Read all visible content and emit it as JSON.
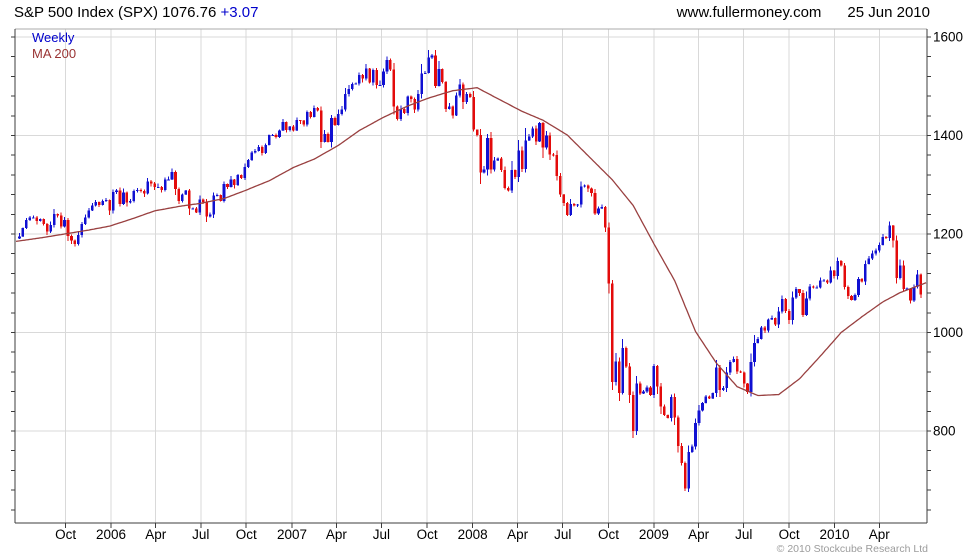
{
  "header": {
    "title": "S&P 500 Index (SPX) 1076.76 ",
    "change": "+3.07",
    "site": "www.fullermoney.com",
    "date": "25 Jun 2010"
  },
  "legend": {
    "series_label": "Weekly",
    "ma_label": "MA 200"
  },
  "footer": {
    "copyright": "© 2010 Stockcube Research Ltd"
  },
  "colors": {
    "up_candle": "#1010d2",
    "down_candle": "#e30b0b",
    "ma_line": "#994040",
    "grid": "#d9d9d9",
    "border_dark": "#3c3c3c",
    "border_light": "#ababab",
    "change_text": "#0000cc",
    "legend_weekly_text": "#0000cc",
    "legend_ma_text": "#993333",
    "axis_text": "#000000",
    "copyright_text": "#9c9c9c"
  },
  "chart_data": {
    "type": "candlestick",
    "title": "S&P 500 Index (SPX)",
    "last_price": 1076.76,
    "last_change": 3.07,
    "timeframe": "Weekly",
    "overlay": "MA 200",
    "grid": true,
    "legend_position": "top-left",
    "ylim": [
      613,
      1616
    ],
    "y_ticks": [
      800,
      1000,
      1200,
      1400,
      1600
    ],
    "y_minor_tick_step": 40,
    "x_ticks": [
      {
        "label": "Oct",
        "week": 14.3
      },
      {
        "label": "2006",
        "week": 27.4
      },
      {
        "label": "Apr",
        "week": 40.3
      },
      {
        "label": "Jul",
        "week": 53.3
      },
      {
        "label": "Oct",
        "week": 66.4
      },
      {
        "label": "2007",
        "week": 79.6
      },
      {
        "label": "Apr",
        "week": 92.4
      },
      {
        "label": "Jul",
        "week": 105.4
      },
      {
        "label": "Oct",
        "week": 118.6
      },
      {
        "label": "2008",
        "week": 131.7
      },
      {
        "label": "Apr",
        "week": 144.7
      },
      {
        "label": "Jul",
        "week": 157.7
      },
      {
        "label": "Oct",
        "week": 170.9
      },
      {
        "label": "2009",
        "week": 184.0
      },
      {
        "label": "Apr",
        "week": 196.9
      },
      {
        "label": "Jul",
        "week": 209.9
      },
      {
        "label": "Oct",
        "week": 223.0
      },
      {
        "label": "2010",
        "week": 236.1
      },
      {
        "label": "Apr",
        "week": 249.0
      }
    ],
    "weekly_closes": [
      1191,
      1195,
      1212,
      1228,
      1233,
      1234,
      1226,
      1230,
      1220,
      1205,
      1218,
      1241,
      1238,
      1215,
      1228,
      1196,
      1187,
      1180,
      1198,
      1220,
      1234,
      1248,
      1258,
      1265,
      1259,
      1267,
      1269,
      1248,
      1285,
      1288,
      1261,
      1284,
      1264,
      1267,
      1287,
      1289,
      1287,
      1282,
      1307,
      1303,
      1295,
      1295,
      1289,
      1311,
      1311,
      1326,
      1291,
      1267,
      1280,
      1288,
      1252,
      1252,
      1244,
      1270,
      1265,
      1236,
      1240,
      1278,
      1279,
      1267,
      1302,
      1295,
      1311,
      1299,
      1320,
      1314,
      1336,
      1350,
      1365,
      1369,
      1377,
      1364,
      1381,
      1401,
      1401,
      1397,
      1410,
      1427,
      1411,
      1418,
      1410,
      1431,
      1430,
      1422,
      1448,
      1438,
      1456,
      1451,
      1387,
      1403,
      1387,
      1436,
      1421,
      1444,
      1453,
      1484,
      1494,
      1505,
      1506,
      1523,
      1516,
      1536,
      1508,
      1533,
      1503,
      1503,
      1530,
      1553,
      1534,
      1459,
      1433,
      1454,
      1446,
      1479,
      1474,
      1453,
      1484,
      1526,
      1527,
      1558,
      1562,
      1501,
      1535,
      1509,
      1454,
      1459,
      1441,
      1481,
      1504,
      1468,
      1484,
      1478,
      1412,
      1401,
      1325,
      1331,
      1395,
      1331,
      1349,
      1353,
      1330,
      1293,
      1288,
      1330,
      1316,
      1370,
      1332,
      1390,
      1398,
      1414,
      1388,
      1425,
      1376,
      1400,
      1361,
      1360,
      1318,
      1280,
      1263,
      1239,
      1261,
      1258,
      1260,
      1296,
      1298,
      1292,
      1283,
      1242,
      1252,
      1255,
      1213,
      1099,
      899,
      941,
      877,
      969,
      931,
      873,
      800,
      896,
      876,
      880,
      888,
      873,
      932,
      890,
      850,
      832,
      826,
      869,
      827,
      770,
      735,
      683,
      757,
      769,
      816,
      842,
      857,
      870,
      866,
      877,
      929,
      883,
      887,
      919,
      940,
      946,
      921,
      919,
      896,
      879,
      940,
      979,
      987,
      1010,
      1004,
      1026,
      1029,
      1016,
      1043,
      1068,
      1044,
      1025,
      1071,
      1088,
      1080,
      1036,
      1069,
      1093,
      1091,
      1091,
      1106,
      1106,
      1102,
      1126,
      1115,
      1145,
      1136,
      1092,
      1074,
      1066,
      1076,
      1109,
      1104,
      1139,
      1150,
      1160,
      1166,
      1178,
      1194,
      1192,
      1217,
      1187,
      1111,
      1136,
      1088,
      1089,
      1065,
      1092,
      1118,
      1077
    ],
    "ma200_points": [
      [
        0,
        1185
      ],
      [
        7,
        1192
      ],
      [
        14,
        1200
      ],
      [
        21,
        1208
      ],
      [
        27,
        1216
      ],
      [
        34,
        1232
      ],
      [
        40,
        1247
      ],
      [
        47,
        1256
      ],
      [
        53,
        1262
      ],
      [
        60,
        1272
      ],
      [
        66,
        1288
      ],
      [
        73,
        1308
      ],
      [
        80,
        1335
      ],
      [
        86,
        1352
      ],
      [
        93,
        1380
      ],
      [
        99,
        1410
      ],
      [
        106,
        1437
      ],
      [
        113,
        1460
      ],
      [
        119,
        1476
      ],
      [
        126,
        1491
      ],
      [
        133,
        1497
      ],
      [
        140,
        1471
      ],
      [
        146,
        1449
      ],
      [
        152,
        1431
      ],
      [
        159,
        1401
      ],
      [
        166,
        1352
      ],
      [
        172,
        1310
      ],
      [
        178,
        1258
      ],
      [
        184,
        1180
      ],
      [
        190,
        1105
      ],
      [
        196,
        1002
      ],
      [
        202,
        938
      ],
      [
        208,
        890
      ],
      [
        214,
        872
      ],
      [
        220,
        874
      ],
      [
        226,
        906
      ],
      [
        232,
        952
      ],
      [
        238,
        1000
      ],
      [
        244,
        1032
      ],
      [
        250,
        1062
      ],
      [
        255,
        1081
      ],
      [
        261,
        1097
      ],
      [
        262.5,
        1101
      ]
    ]
  }
}
